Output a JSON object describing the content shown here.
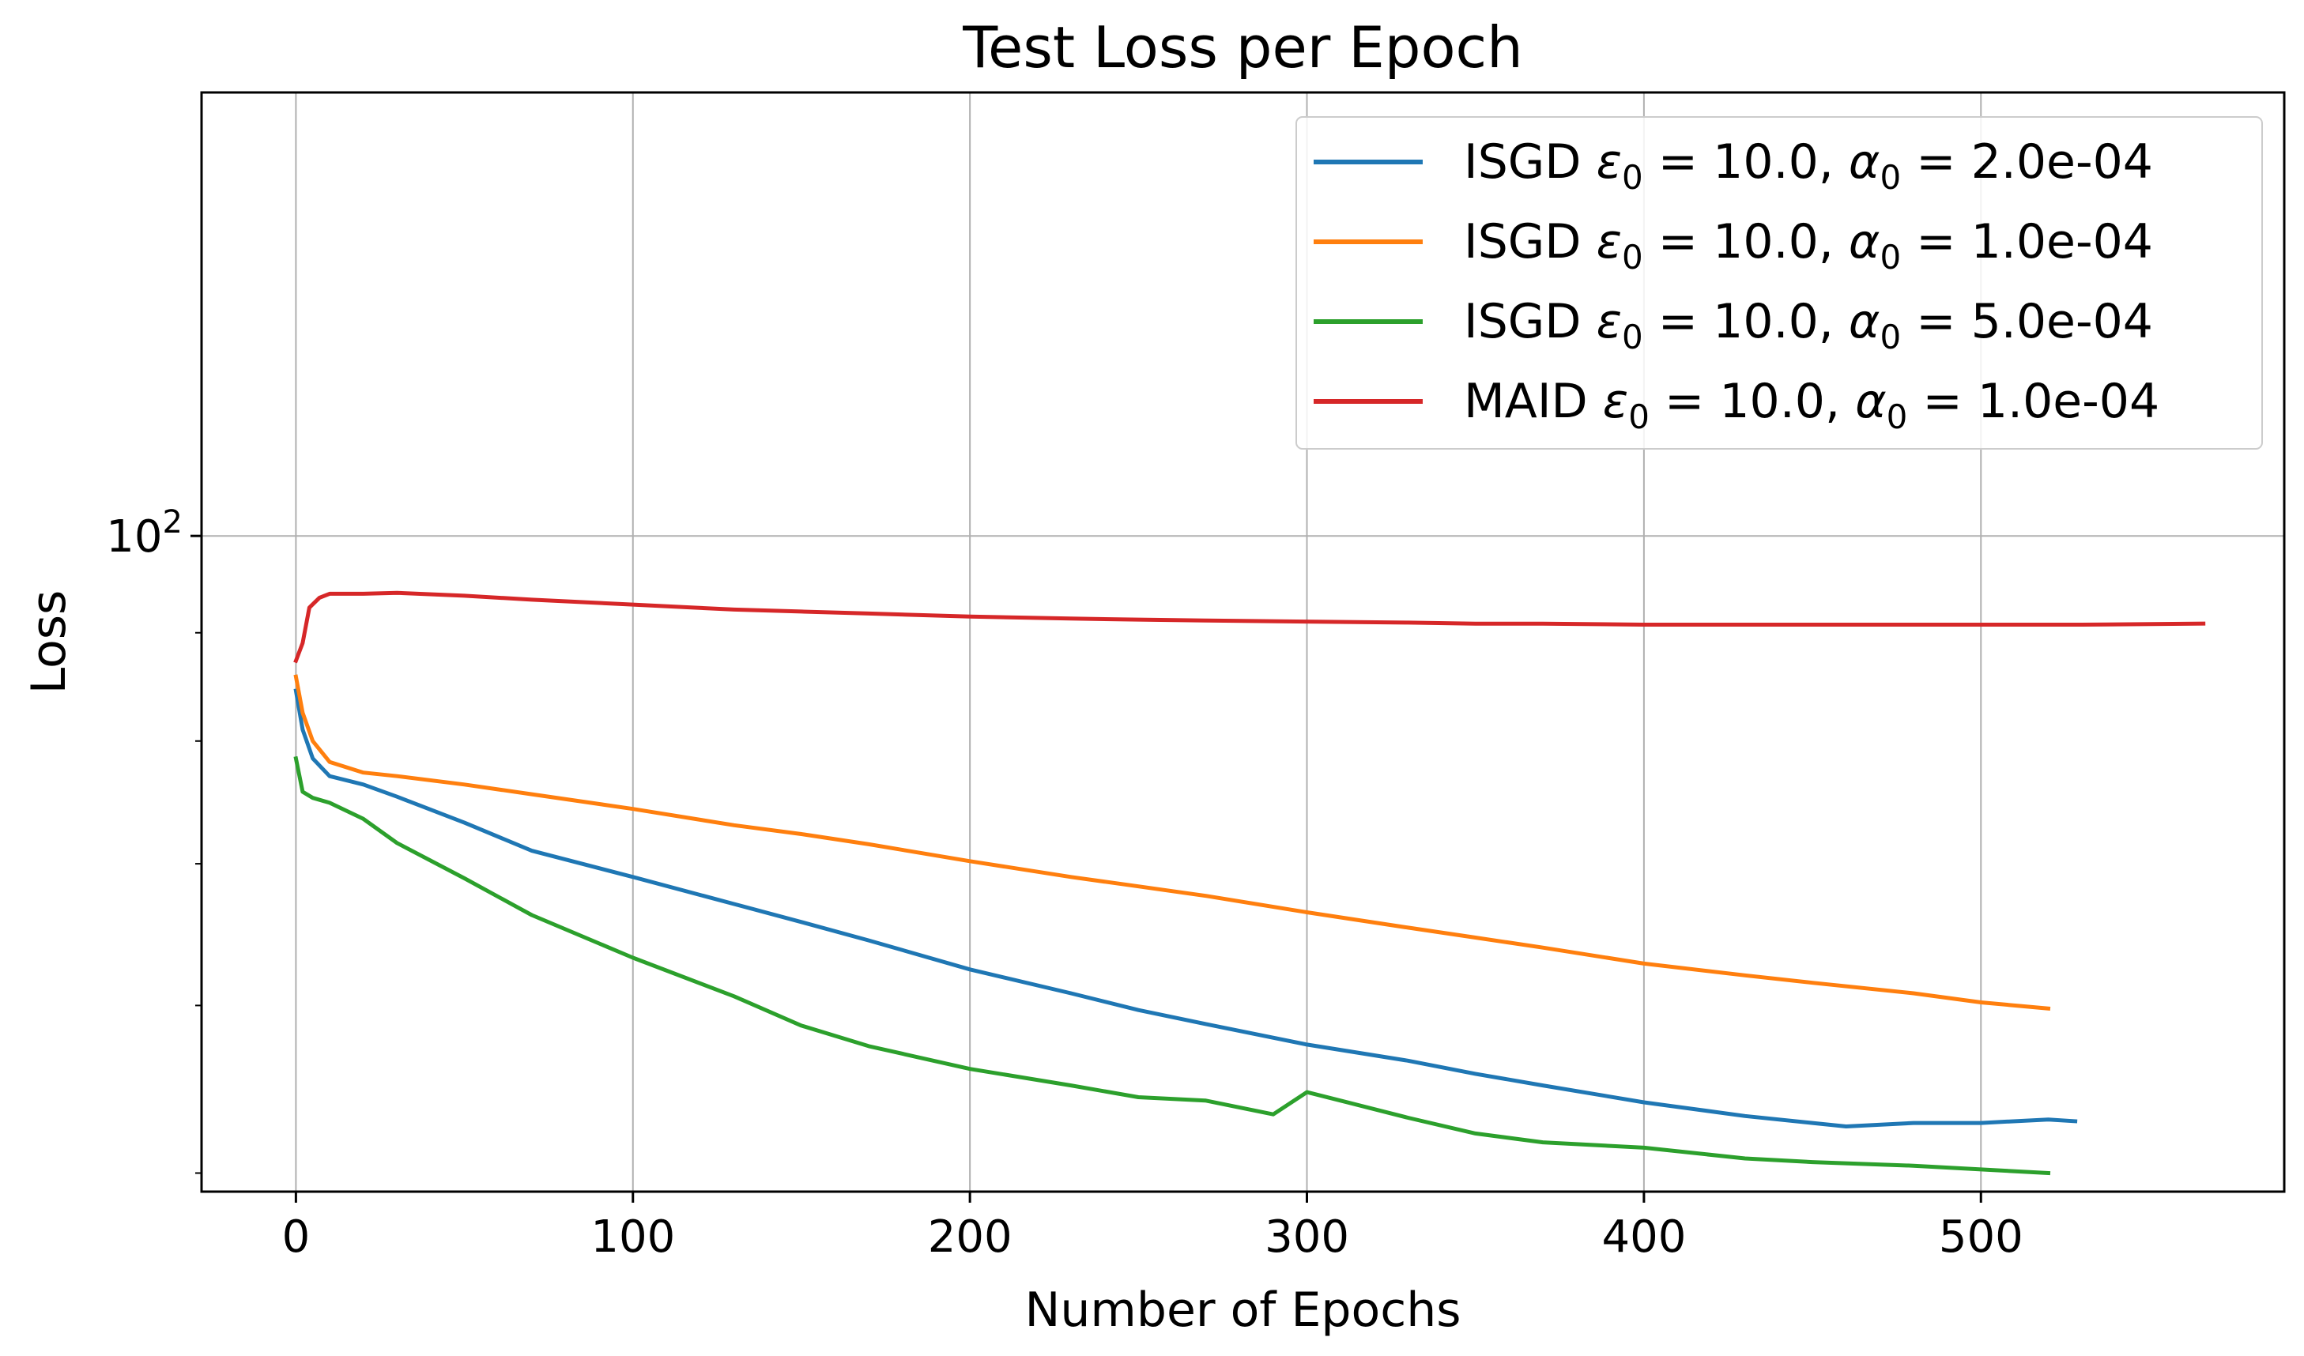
{
  "chart_data": {
    "type": "line",
    "title": "Test Loss per Epoch",
    "xlabel": "Number of Epochs",
    "ylabel": "Loss",
    "yscale": "log",
    "xlim": [
      -28,
      590
    ],
    "ylim": [
      49,
      162
    ],
    "xticks": [
      0,
      100,
      200,
      300,
      400,
      500
    ],
    "xtick_labels": [
      "0",
      "100",
      "200",
      "300",
      "400",
      "500"
    ],
    "ytick_label": {
      "base": "10",
      "exponent": "2",
      "value": 100
    },
    "y_minor_ticks": [
      50,
      60,
      70,
      80,
      90,
      200
    ],
    "grid": true,
    "legend_position": "top-right",
    "series": [
      {
        "name": "ISGD ε₀ = 10.0, α₀ = 2.0e-04",
        "legend_parts": {
          "method": "ISGD",
          "eps_value": "10.0",
          "alpha_value": "2.0e-04"
        },
        "color": "#1f77b4",
        "x": [
          0,
          2,
          5,
          10,
          20,
          30,
          50,
          70,
          100,
          130,
          150,
          170,
          200,
          230,
          250,
          270,
          300,
          330,
          350,
          370,
          400,
          430,
          450,
          460,
          480,
          500,
          520,
          528
        ],
        "y": [
          84.5,
          81,
          78.5,
          77,
          76.3,
          75.3,
          73.2,
          71,
          69,
          67,
          65.7,
          64.4,
          62.4,
          60.8,
          59.7,
          58.8,
          57.5,
          56.5,
          55.7,
          55,
          54,
          53.2,
          52.8,
          52.6,
          52.8,
          52.8,
          53,
          52.9
        ]
      },
      {
        "name": "ISGD ε₀ = 10.0, α₀ = 1.0e-04",
        "legend_parts": {
          "method": "ISGD",
          "eps_value": "10.0",
          "alpha_value": "1.0e-04"
        },
        "color": "#ff7f0e",
        "x": [
          0,
          2,
          5,
          10,
          20,
          30,
          50,
          70,
          100,
          130,
          150,
          170,
          200,
          230,
          250,
          270,
          300,
          330,
          350,
          370,
          400,
          430,
          450,
          480,
          500,
          520
        ],
        "y": [
          85.8,
          82.5,
          80,
          78.2,
          77.3,
          77,
          76.3,
          75.5,
          74.3,
          73,
          72.3,
          71.5,
          70.2,
          69,
          68.3,
          67.6,
          66.4,
          65.3,
          64.6,
          63.9,
          62.8,
          62,
          61.5,
          60.8,
          60.2,
          59.8
        ]
      },
      {
        "name": "ISGD ε₀ = 10.0, α₀ = 5.0e-04",
        "legend_parts": {
          "method": "ISGD",
          "eps_value": "10.0",
          "alpha_value": "5.0e-04"
        },
        "color": "#2ca02c",
        "x": [
          0,
          2,
          5,
          10,
          20,
          30,
          50,
          70,
          100,
          130,
          150,
          170,
          200,
          230,
          250,
          270,
          290,
          300,
          310,
          330,
          350,
          370,
          400,
          430,
          450,
          480,
          500,
          520
        ],
        "y": [
          78.5,
          75.7,
          75.2,
          74.8,
          73.5,
          71.6,
          68.9,
          66.2,
          63.2,
          60.6,
          58.7,
          57.4,
          56,
          55,
          54.3,
          54.1,
          53.3,
          54.6,
          54.1,
          53.1,
          52.2,
          51.7,
          51.4,
          50.8,
          50.6,
          50.4,
          50.2,
          50
        ]
      },
      {
        "name": "MAID ε₀ = 10.0, α₀ = 1.0e-04",
        "legend_parts": {
          "method": "MAID",
          "eps_value": "10.0",
          "alpha_value": "1.0e-04"
        },
        "color": "#d62728",
        "x": [
          0,
          2,
          4,
          7,
          10,
          20,
          30,
          50,
          70,
          100,
          130,
          150,
          170,
          200,
          230,
          250,
          270,
          300,
          330,
          350,
          370,
          400,
          430,
          450,
          480,
          500,
          530,
          566
        ],
        "y": [
          87.3,
          89,
          92.5,
          93.5,
          93.9,
          93.9,
          94,
          93.7,
          93.3,
          92.8,
          92.3,
          92.1,
          91.9,
          91.6,
          91.4,
          91.3,
          91.2,
          91.1,
          91.0,
          90.9,
          90.9,
          90.8,
          90.8,
          90.8,
          90.8,
          90.8,
          90.8,
          90.9
        ]
      }
    ]
  }
}
